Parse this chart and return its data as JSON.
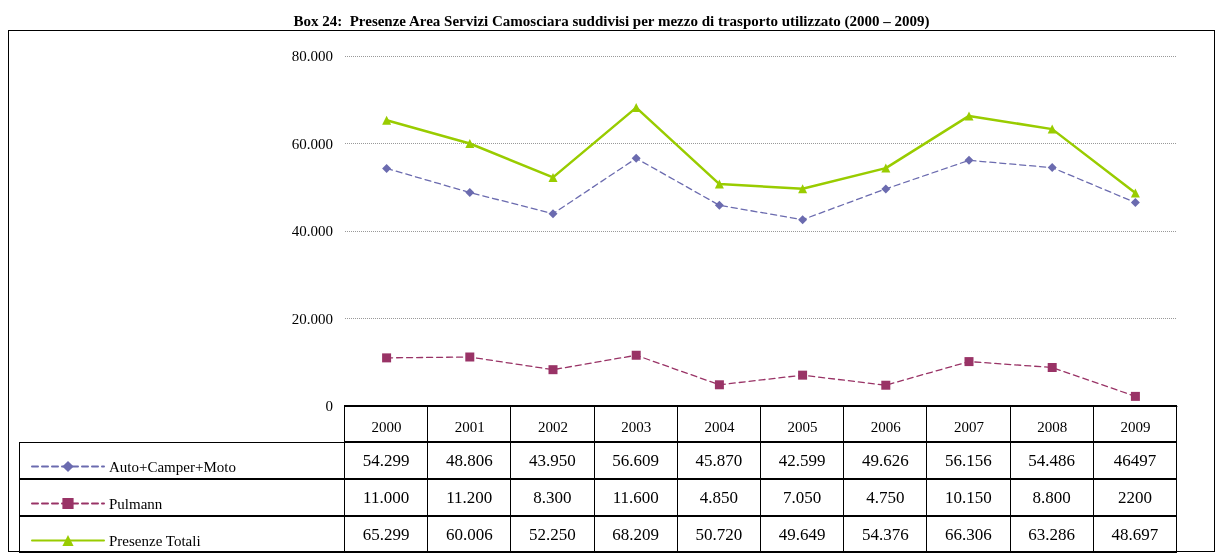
{
  "chart_data": {
    "type": "line",
    "title": "Box 24:  Presenze Area Servizi Camosciara suddivisi per mezzo di trasporto utilizzato (2000 – 2009)",
    "categories": [
      "2000",
      "2001",
      "2002",
      "2003",
      "2004",
      "2005",
      "2006",
      "2007",
      "2008",
      "2009"
    ],
    "series": [
      {
        "name": "Auto+Camper+Moto",
        "color": "#6b6baf",
        "marker": "diamond",
        "line_style": "dashed",
        "values": [
          54299,
          48806,
          43950,
          56609,
          45870,
          42599,
          49626,
          56156,
          54486,
          46497
        ],
        "value_labels": [
          "54.299",
          "48.806",
          "43.950",
          "56.609",
          "45.870",
          "42.599",
          "49.626",
          "56.156",
          "54.486",
          "46497"
        ]
      },
      {
        "name": "Pulmann",
        "color": "#993366",
        "marker": "square",
        "line_style": "dashed",
        "values": [
          11000,
          11200,
          8300,
          11600,
          4850,
          7050,
          4750,
          10150,
          8800,
          2200
        ],
        "value_labels": [
          "11.000",
          "11.200",
          "8.300",
          "11.600",
          "4.850",
          "7.050",
          "4.750",
          "10.150",
          "8.800",
          "2200"
        ]
      },
      {
        "name": "Presenze Totali",
        "color": "#99cc00",
        "marker": "triangle",
        "line_style": "solid",
        "values": [
          65299,
          60006,
          52250,
          68209,
          50720,
          49649,
          54376,
          66306,
          63286,
          48697
        ],
        "value_labels": [
          "65.299",
          "60.006",
          "52.250",
          "68.209",
          "50.720",
          "49.649",
          "54.376",
          "66.306",
          "63.286",
          "48.697"
        ]
      }
    ],
    "ylim": [
      0,
      80000
    ],
    "yticks": [
      {
        "value": 0,
        "label": "0"
      },
      {
        "value": 20000,
        "label": "20.000"
      },
      {
        "value": 40000,
        "label": "40.000"
      },
      {
        "value": 60000,
        "label": "60.000"
      },
      {
        "value": 80000,
        "label": "80.000"
      }
    ],
    "grid": "y",
    "legend": "bottom"
  }
}
